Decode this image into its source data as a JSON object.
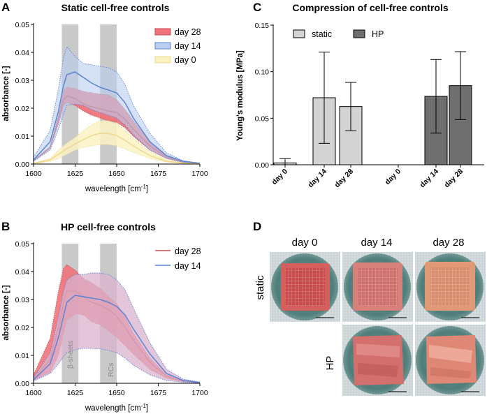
{
  "panels": {
    "A": {
      "label": "A",
      "title": "Static cell-free controls",
      "ylabel": "absorbance [-]",
      "xlabel_main": "wavelength [cm",
      "xlabel_sup": "-1",
      "xlabel_end": "]",
      "xticks": [
        "1600",
        "1625",
        "1650",
        "1675",
        "1700"
      ],
      "yticks": [
        "0.00",
        "0.01",
        "0.02",
        "0.03",
        "0.04",
        "0.05"
      ],
      "legend": [
        "day 28",
        "day 14",
        "day 0"
      ],
      "band_labels": []
    },
    "B": {
      "label": "B",
      "title": "HP cell-free controls",
      "ylabel": "absorbance [-]",
      "xlabel_main": "wavelength [cm",
      "xlabel_sup": "-1",
      "xlabel_end": "]",
      "xticks": [
        "1600",
        "1625",
        "1650",
        "1675",
        "1700"
      ],
      "yticks": [
        "0.00",
        "0.01",
        "0.02",
        "0.03",
        "0.04",
        "0.05"
      ],
      "legend": [
        "day 28",
        "day 14"
      ],
      "band_labels": [
        "β-sheets",
        "RCs"
      ]
    },
    "C": {
      "label": "C",
      "title": "Compression of cell-free controls",
      "ylabel": "Young's modulus [MPa]",
      "yticks": [
        "0.00",
        "0.05",
        "0.10",
        "0.15"
      ],
      "legend": [
        "static",
        "HP"
      ],
      "categories": [
        "day 0",
        "day 14",
        "day 28",
        "day 0",
        "day 14",
        "day 28"
      ]
    },
    "D": {
      "label": "D",
      "col_labels": [
        "day 0",
        "day 14",
        "day 28"
      ],
      "row_labels": [
        "static",
        "HP"
      ]
    }
  },
  "colors": {
    "day28_line": "#c8474e",
    "day28_band": "#f0737a",
    "day14_line": "#5b83d6",
    "day14_band": "#b9cff0",
    "day0_line": "#eed88e",
    "day0_band": "#fbf2c4",
    "hp_overlap": "#d9b3cc",
    "grey_band": "#c9c9c9",
    "static_bar": "#d3d3d3",
    "hp_bar": "#6f6f6f"
  },
  "chart_data": [
    {
      "type": "line",
      "panel": "A",
      "title": "Static cell-free controls",
      "xlabel": "wavelength [cm-1]",
      "ylabel": "absorbance [-]",
      "xlim": [
        1600,
        1700
      ],
      "ylim": [
        0,
        0.05
      ],
      "highlight_bands": [
        [
          1617,
          1627
        ],
        [
          1640,
          1650
        ]
      ],
      "series": [
        {
          "name": "day 28",
          "x": [
            1600,
            1610,
            1615,
            1618,
            1620,
            1625,
            1630,
            1635,
            1640,
            1645,
            1650,
            1655,
            1660,
            1670,
            1680,
            1690,
            1700
          ],
          "mean": [
            0.0012,
            0.006,
            0.016,
            0.023,
            0.0245,
            0.0235,
            0.0215,
            0.0205,
            0.0198,
            0.019,
            0.0185,
            0.016,
            0.0125,
            0.0065,
            0.0025,
            0.0007,
            0.0002
          ],
          "upper": [
            0.0013,
            0.0062,
            0.0175,
            0.026,
            0.0275,
            0.027,
            0.026,
            0.0255,
            0.025,
            0.0248,
            0.023,
            0.0195,
            0.0155,
            0.008,
            0.003,
            0.0008,
            0.0002
          ],
          "lower": [
            0.001,
            0.0055,
            0.0145,
            0.021,
            0.022,
            0.021,
            0.019,
            0.0175,
            0.0165,
            0.0155,
            0.015,
            0.013,
            0.01,
            0.005,
            0.002,
            0.0006,
            0.0002
          ]
        },
        {
          "name": "day 14",
          "x": [
            1600,
            1610,
            1615,
            1618,
            1620,
            1625,
            1630,
            1635,
            1640,
            1645,
            1650,
            1655,
            1660,
            1670,
            1680,
            1690,
            1700
          ],
          "mean": [
            0.0015,
            0.008,
            0.019,
            0.028,
            0.032,
            0.033,
            0.031,
            0.029,
            0.0275,
            0.0265,
            0.0255,
            0.022,
            0.0165,
            0.008,
            0.003,
            0.001,
            0.0003
          ],
          "upper": [
            0.0025,
            0.012,
            0.027,
            0.038,
            0.042,
            0.0385,
            0.036,
            0.0355,
            0.035,
            0.0345,
            0.033,
            0.0285,
            0.021,
            0.011,
            0.004,
            0.0012,
            0.0003
          ],
          "lower": [
            0.001,
            0.005,
            0.0125,
            0.018,
            0.021,
            0.0215,
            0.021,
            0.0195,
            0.0185,
            0.0175,
            0.0165,
            0.014,
            0.0105,
            0.005,
            0.002,
            0.0006,
            0.0002
          ]
        },
        {
          "name": "day 0",
          "x": [
            1600,
            1610,
            1615,
            1620,
            1625,
            1630,
            1635,
            1640,
            1645,
            1650,
            1655,
            1660,
            1670,
            1680,
            1690,
            1700
          ],
          "mean": [
            0.0002,
            0.0015,
            0.0035,
            0.0055,
            0.0072,
            0.0088,
            0.0102,
            0.011,
            0.011,
            0.0102,
            0.0085,
            0.0065,
            0.003,
            0.001,
            0.0003,
            0.0001
          ],
          "upper": [
            0.0003,
            0.002,
            0.005,
            0.0075,
            0.0095,
            0.012,
            0.014,
            0.0155,
            0.0155,
            0.0145,
            0.012,
            0.0092,
            0.0045,
            0.0015,
            0.0005,
            0.0001
          ],
          "lower": [
            0.0001,
            0.001,
            0.002,
            0.0035,
            0.005,
            0.006,
            0.0065,
            0.007,
            0.007,
            0.0065,
            0.0055,
            0.0042,
            0.002,
            0.0007,
            0.0002,
            0.0001
          ]
        }
      ]
    },
    {
      "type": "line",
      "panel": "B",
      "title": "HP cell-free controls",
      "xlabel": "wavelength [cm-1]",
      "ylabel": "absorbance [-]",
      "xlim": [
        1600,
        1700
      ],
      "ylim": [
        0,
        0.05
      ],
      "highlight_bands": [
        [
          1617,
          1627
        ],
        [
          1640,
          1650
        ]
      ],
      "band_annotations": [
        "β-sheets",
        "RCs"
      ],
      "series": [
        {
          "name": "day 28",
          "x": [
            1600,
            1610,
            1615,
            1618,
            1620,
            1625,
            1630,
            1635,
            1640,
            1645,
            1650,
            1655,
            1660,
            1670,
            1680,
            1690,
            1700
          ],
          "mean": [
            0.0015,
            0.0085,
            0.02,
            0.029,
            0.033,
            0.033,
            0.031,
            0.029,
            0.028,
            0.0265,
            0.024,
            0.02,
            0.0155,
            0.0075,
            0.0025,
            0.0008,
            0.0002
          ],
          "upper": [
            0.003,
            0.016,
            0.033,
            0.041,
            0.0425,
            0.0405,
            0.0375,
            0.036,
            0.034,
            0.031,
            0.0285,
            0.024,
            0.018,
            0.009,
            0.003,
            0.0009,
            0.0002
          ],
          "lower": [
            0.001,
            0.004,
            0.01,
            0.018,
            0.0225,
            0.025,
            0.0245,
            0.022,
            0.021,
            0.019,
            0.0165,
            0.0135,
            0.0105,
            0.005,
            0.0018,
            0.0006,
            0.0002
          ]
        },
        {
          "name": "day 14",
          "x": [
            1600,
            1610,
            1615,
            1618,
            1620,
            1625,
            1630,
            1635,
            1640,
            1645,
            1650,
            1655,
            1660,
            1670,
            1680,
            1690,
            1700
          ],
          "mean": [
            0.0012,
            0.007,
            0.0165,
            0.024,
            0.029,
            0.0315,
            0.031,
            0.0305,
            0.03,
            0.029,
            0.0275,
            0.0245,
            0.0195,
            0.0105,
            0.0035,
            0.001,
            0.0003
          ],
          "upper": [
            0.002,
            0.011,
            0.024,
            0.033,
            0.037,
            0.039,
            0.039,
            0.0395,
            0.0395,
            0.039,
            0.037,
            0.0335,
            0.027,
            0.0145,
            0.005,
            0.0015,
            0.0004
          ],
          "lower": [
            0.0008,
            0.0035,
            0.007,
            0.0095,
            0.011,
            0.012,
            0.0125,
            0.0125,
            0.0123,
            0.0118,
            0.011,
            0.009,
            0.0065,
            0.003,
            0.001,
            0.0004,
            0.0002
          ]
        }
      ]
    },
    {
      "type": "bar",
      "panel": "C",
      "title": "Compression of cell-free controls",
      "ylabel": "Young's modulus [MPa]",
      "ylim": [
        0,
        0.15
      ],
      "categories": [
        "day 0",
        "day 14",
        "day 28"
      ],
      "series": [
        {
          "name": "static",
          "values": [
            0.002,
            0.072,
            0.0625
          ],
          "errors": [
            0.0045,
            0.049,
            0.026
          ]
        },
        {
          "name": "HP",
          "values": [
            0.0,
            0.0735,
            0.085
          ],
          "errors": [
            0.0,
            0.0395,
            0.0365
          ]
        }
      ]
    }
  ]
}
